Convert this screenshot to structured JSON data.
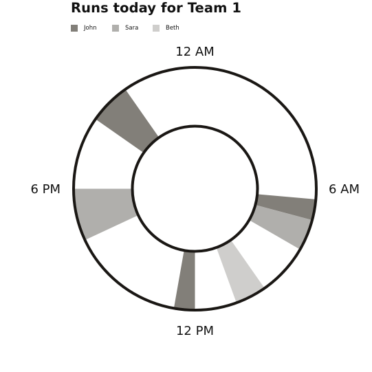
{
  "chart_data": {
    "type": "radial-timeline",
    "title": "Runs today for Team 1",
    "hour_labels": [
      {
        "label": "12 AM",
        "hour": 0
      },
      {
        "label": "6 AM",
        "hour": 6
      },
      {
        "label": "12 PM",
        "hour": 12
      },
      {
        "label": "6 PM",
        "hour": 18
      }
    ],
    "legend_position": "top-left",
    "series": [
      {
        "name": "John",
        "color": "#827f79",
        "runs": [
          {
            "start": "06:20",
            "end": "07:00"
          },
          {
            "start": "12:00",
            "end": "12:40"
          },
          {
            "start": "20:20",
            "end": "21:40"
          }
        ]
      },
      {
        "name": "Sara",
        "color": "#b0afac",
        "runs": [
          {
            "start": "07:00",
            "end": "08:00"
          },
          {
            "start": "16:20",
            "end": "18:00"
          }
        ]
      },
      {
        "name": "Beth",
        "color": "#cfcecc",
        "runs": [
          {
            "start": "09:40",
            "end": "10:40"
          }
        ]
      }
    ]
  }
}
